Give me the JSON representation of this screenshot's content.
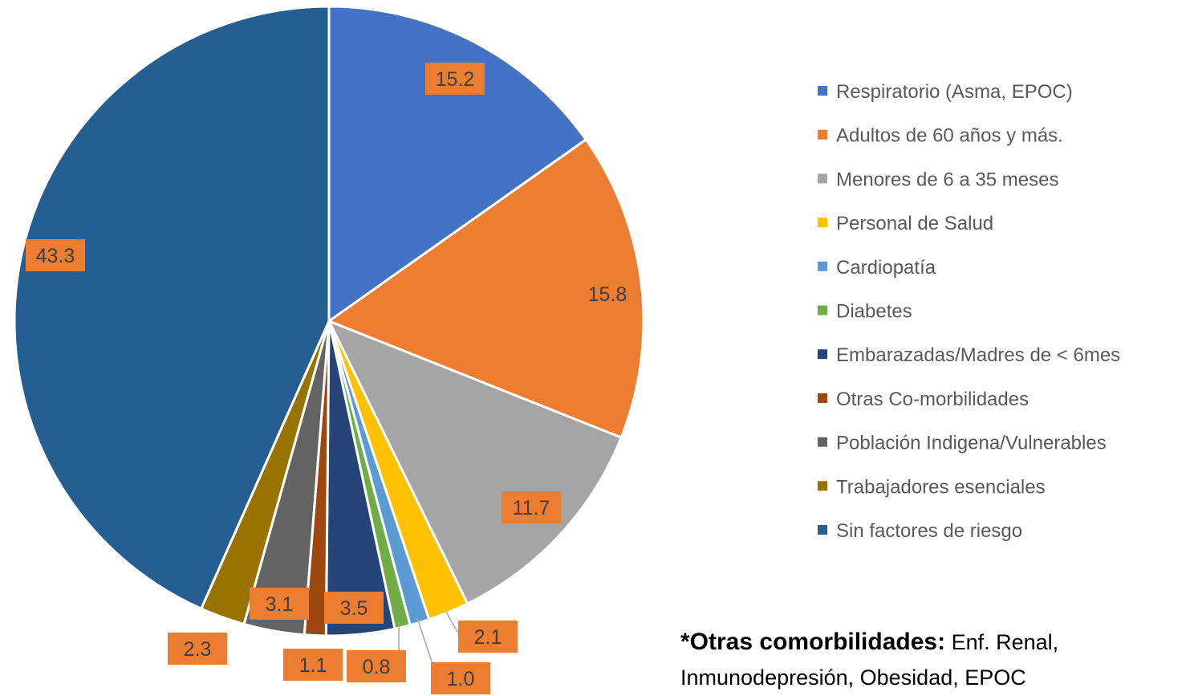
{
  "chart_data": {
    "type": "pie",
    "categories": [
      "Respiratorio (Asma, EPOC)",
      "Adultos de 60 años y más.",
      "Menores de 6 a 35 meses",
      "Personal de Salud",
      "Cardiopatía",
      "Diabetes",
      "Embarazadas/Madres de < 6mes",
      "Otras Co-morbilidades",
      "Población Indigena/Vulnerables",
      "Trabajadores esenciales",
      "Sin factores de riesgo"
    ],
    "values": [
      15.2,
      15.8,
      11.7,
      2.1,
      1.0,
      0.8,
      3.5,
      1.1,
      3.1,
      2.3,
      43.3
    ],
    "value_labels": [
      "15.2",
      "15.8",
      "11.7",
      "2.1",
      "1.0",
      "0.8",
      "3.5",
      "1.1",
      "3.1",
      "2.3",
      "43.3"
    ],
    "colors": [
      "#4472c4",
      "#ed7d31",
      "#a5a5a5",
      "#ffc000",
      "#5b9bd5",
      "#70ad47",
      "#264478",
      "#9e480e",
      "#636363",
      "#997300",
      "#255e91"
    ],
    "label_color": "#ed7d31",
    "legend": "right",
    "annotation": {
      "bold": "*Otras comorbilidades:",
      "text": "Enf. Renal, Inmunodepresión, Obesidad, EPOC"
    }
  }
}
